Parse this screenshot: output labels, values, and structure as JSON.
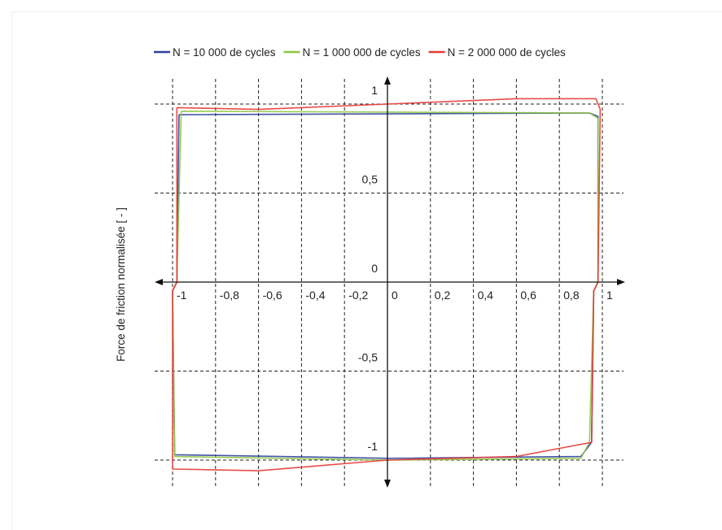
{
  "chart_data": {
    "type": "line",
    "title": "",
    "xlabel": "",
    "ylabel": "Force de friction normalisée  [ - ]",
    "xlim": [
      -1.05,
      1.05
    ],
    "ylim": [
      -1.1,
      1.1
    ],
    "grid": "dashed",
    "legend_position": "top",
    "x_ticks": [
      {
        "v": -1,
        "label": "-1"
      },
      {
        "v": -0.8,
        "label": "-0,8"
      },
      {
        "v": -0.6,
        "label": "-0,6"
      },
      {
        "v": -0.4,
        "label": "-0,4"
      },
      {
        "v": -0.2,
        "label": "-0,2"
      },
      {
        "v": 0,
        "label": "0"
      },
      {
        "v": 0.2,
        "label": "0,2"
      },
      {
        "v": 0.4,
        "label": "0,4"
      },
      {
        "v": 0.6,
        "label": "0,6"
      },
      {
        "v": 0.8,
        "label": "0,8"
      },
      {
        "v": 1,
        "label": "1"
      }
    ],
    "y_ticks": [
      {
        "v": 1,
        "label": "1"
      },
      {
        "v": 0.5,
        "label": "0,5"
      },
      {
        "v": 0,
        "label": "0"
      },
      {
        "v": -0.5,
        "label": "-0,5"
      },
      {
        "v": -1,
        "label": "-1"
      }
    ],
    "series": [
      {
        "name": "N = 10 000 de cycles",
        "color": "#2f3f9e",
        "x": [
          -0.97,
          0.94,
          0.98,
          0.98,
          0.96,
          0.95,
          0.9,
          0.0,
          -0.99,
          -1.0,
          -0.98,
          -0.97
        ],
        "y": [
          0.94,
          0.95,
          0.93,
          0.0,
          -0.05,
          -0.9,
          -0.98,
          -0.99,
          -0.97,
          -0.05,
          0.0,
          0.94
        ]
      },
      {
        "name": "N = 1 000 000 de cycles",
        "color": "#8cc63f",
        "x": [
          -0.96,
          0.94,
          0.98,
          0.98,
          0.96,
          0.94,
          0.9,
          0.0,
          -0.99,
          -1.0,
          -0.98,
          -0.96
        ],
        "y": [
          0.96,
          0.95,
          0.92,
          0.0,
          -0.05,
          -0.9,
          -0.99,
          -1.0,
          -0.98,
          -0.05,
          0.0,
          0.96
        ]
      },
      {
        "name": "N = 2 000 000 de cycles",
        "color": "#e53935",
        "x": [
          -0.98,
          -0.6,
          0.0,
          0.6,
          0.97,
          0.99,
          0.98,
          0.96,
          0.95,
          0.6,
          0.0,
          -0.6,
          -1.0,
          -1.0,
          -0.98,
          -0.98
        ],
        "y": [
          0.98,
          0.97,
          1.0,
          1.03,
          1.03,
          0.97,
          0.0,
          -0.05,
          -0.9,
          -0.98,
          -1.0,
          -1.06,
          -1.05,
          -0.05,
          0.0,
          0.98
        ]
      }
    ]
  }
}
